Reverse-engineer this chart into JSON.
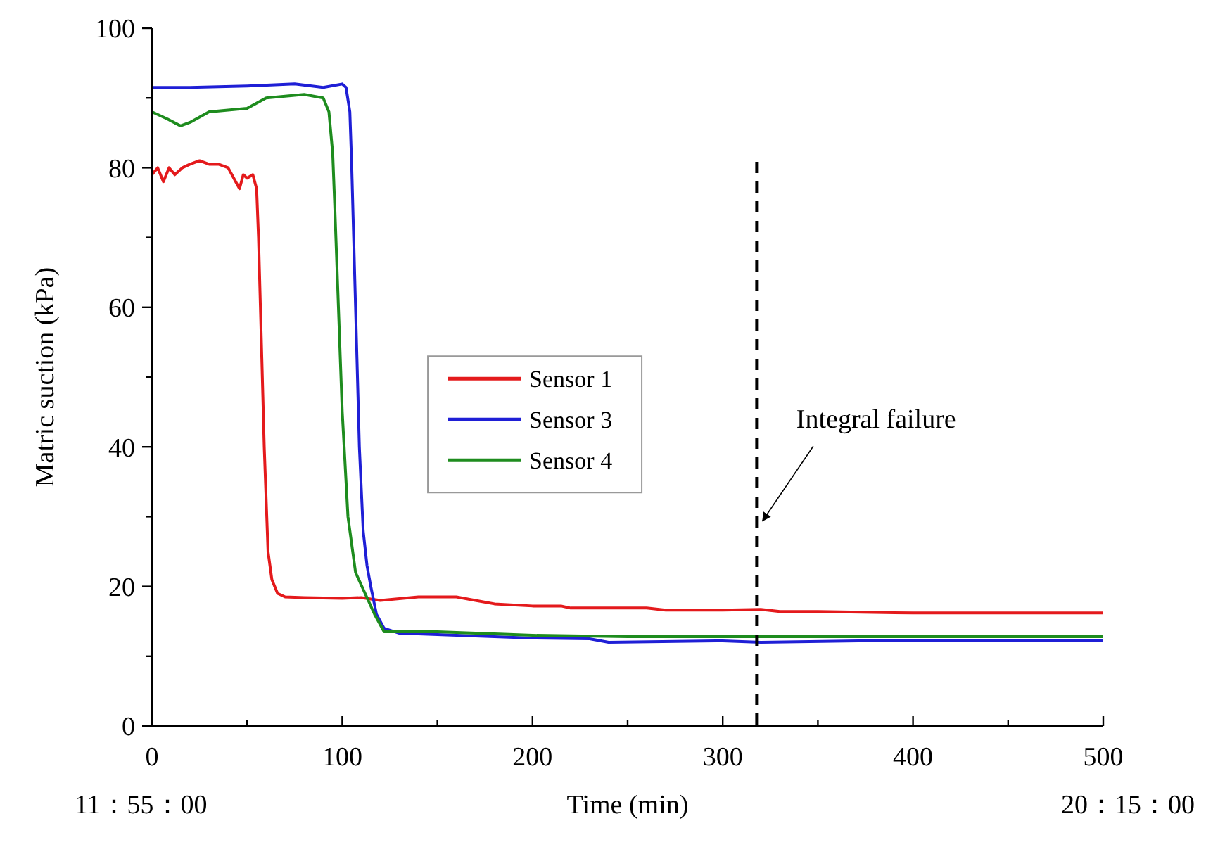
{
  "chart_data": {
    "type": "line",
    "xlabel": "Time  (min)",
    "ylabel": "Matric suction (kPa)",
    "xlim": [
      0,
      500
    ],
    "ylim": [
      0,
      100
    ],
    "xticks": [
      0,
      {
        "value": 50,
        "label": null
      },
      100,
      {
        "value": 150,
        "label": null
      },
      200,
      {
        "value": 250,
        "label": null
      },
      300,
      {
        "value": 350,
        "label": null
      },
      400,
      {
        "value": 450,
        "label": null
      },
      500
    ],
    "yticks": [
      0,
      {
        "value": 10,
        "label": null
      },
      20,
      {
        "value": 30,
        "label": null
      },
      40,
      {
        "value": 50,
        "label": null
      },
      60,
      {
        "value": 70,
        "label": null
      },
      80,
      {
        "value": 90,
        "label": null
      },
      100
    ],
    "legend": "center left",
    "grid": false,
    "marker": "none",
    "line_style": "solid",
    "series": [
      {
        "name": "Sensor 1",
        "color": "#e41a1c",
        "x": [
          0,
          3,
          6,
          9,
          12,
          16,
          20,
          25,
          30,
          35,
          40,
          44,
          46,
          48,
          50,
          53,
          55,
          56,
          57,
          59,
          61,
          63,
          66,
          70,
          80,
          100,
          110,
          120,
          140,
          160,
          170,
          180,
          200,
          215,
          220,
          260,
          270,
          300,
          320,
          330,
          350,
          400,
          500
        ],
        "values": [
          79,
          80,
          78,
          80,
          79,
          80,
          80.5,
          81,
          80.5,
          80.5,
          80,
          78,
          77,
          79,
          78.5,
          79,
          77,
          70,
          60,
          40,
          25,
          21,
          19,
          18.5,
          18.4,
          18.3,
          18.4,
          18,
          18.5,
          18.5,
          18,
          17.5,
          17.2,
          17.2,
          16.9,
          16.9,
          16.6,
          16.6,
          16.7,
          16.4,
          16.4,
          16.2,
          16.2
        ]
      },
      {
        "name": "Sensor 3",
        "color": "#1f1fd6",
        "x": [
          0,
          20,
          50,
          75,
          90,
          100,
          102,
          104,
          105,
          106,
          107,
          109,
          111,
          113,
          115,
          118,
          122,
          130,
          200,
          230,
          240,
          300,
          320,
          400,
          500
        ],
        "values": [
          91.5,
          91.5,
          91.7,
          92,
          91.5,
          92,
          91.5,
          88,
          80,
          70,
          60,
          40,
          28,
          23,
          20,
          16,
          14,
          13.3,
          12.6,
          12.5,
          12,
          12.2,
          12,
          12.3,
          12.2
        ]
      },
      {
        "name": "Sensor 4",
        "color": "#1e8c1e",
        "x": [
          0,
          8,
          15,
          20,
          30,
          50,
          60,
          80,
          90,
          93,
          95,
          96,
          98,
          100,
          103,
          107,
          112,
          117,
          122,
          150,
          200,
          250,
          300,
          500
        ],
        "values": [
          88,
          87,
          86,
          86.5,
          88,
          88.5,
          90,
          90.5,
          90,
          88,
          82,
          75,
          60,
          45,
          30,
          22,
          19,
          16,
          13.5,
          13.5,
          13,
          12.8,
          12.8,
          12.8
        ]
      }
    ],
    "ref_lines": [
      {
        "axis": "x",
        "value": 318,
        "line_style": "dashed",
        "color": "#000000"
      }
    ],
    "annotations": [
      {
        "text": "Integral failure",
        "x": 318,
        "y": 29
      },
      "11：55：00",
      "20：15：00"
    ]
  }
}
